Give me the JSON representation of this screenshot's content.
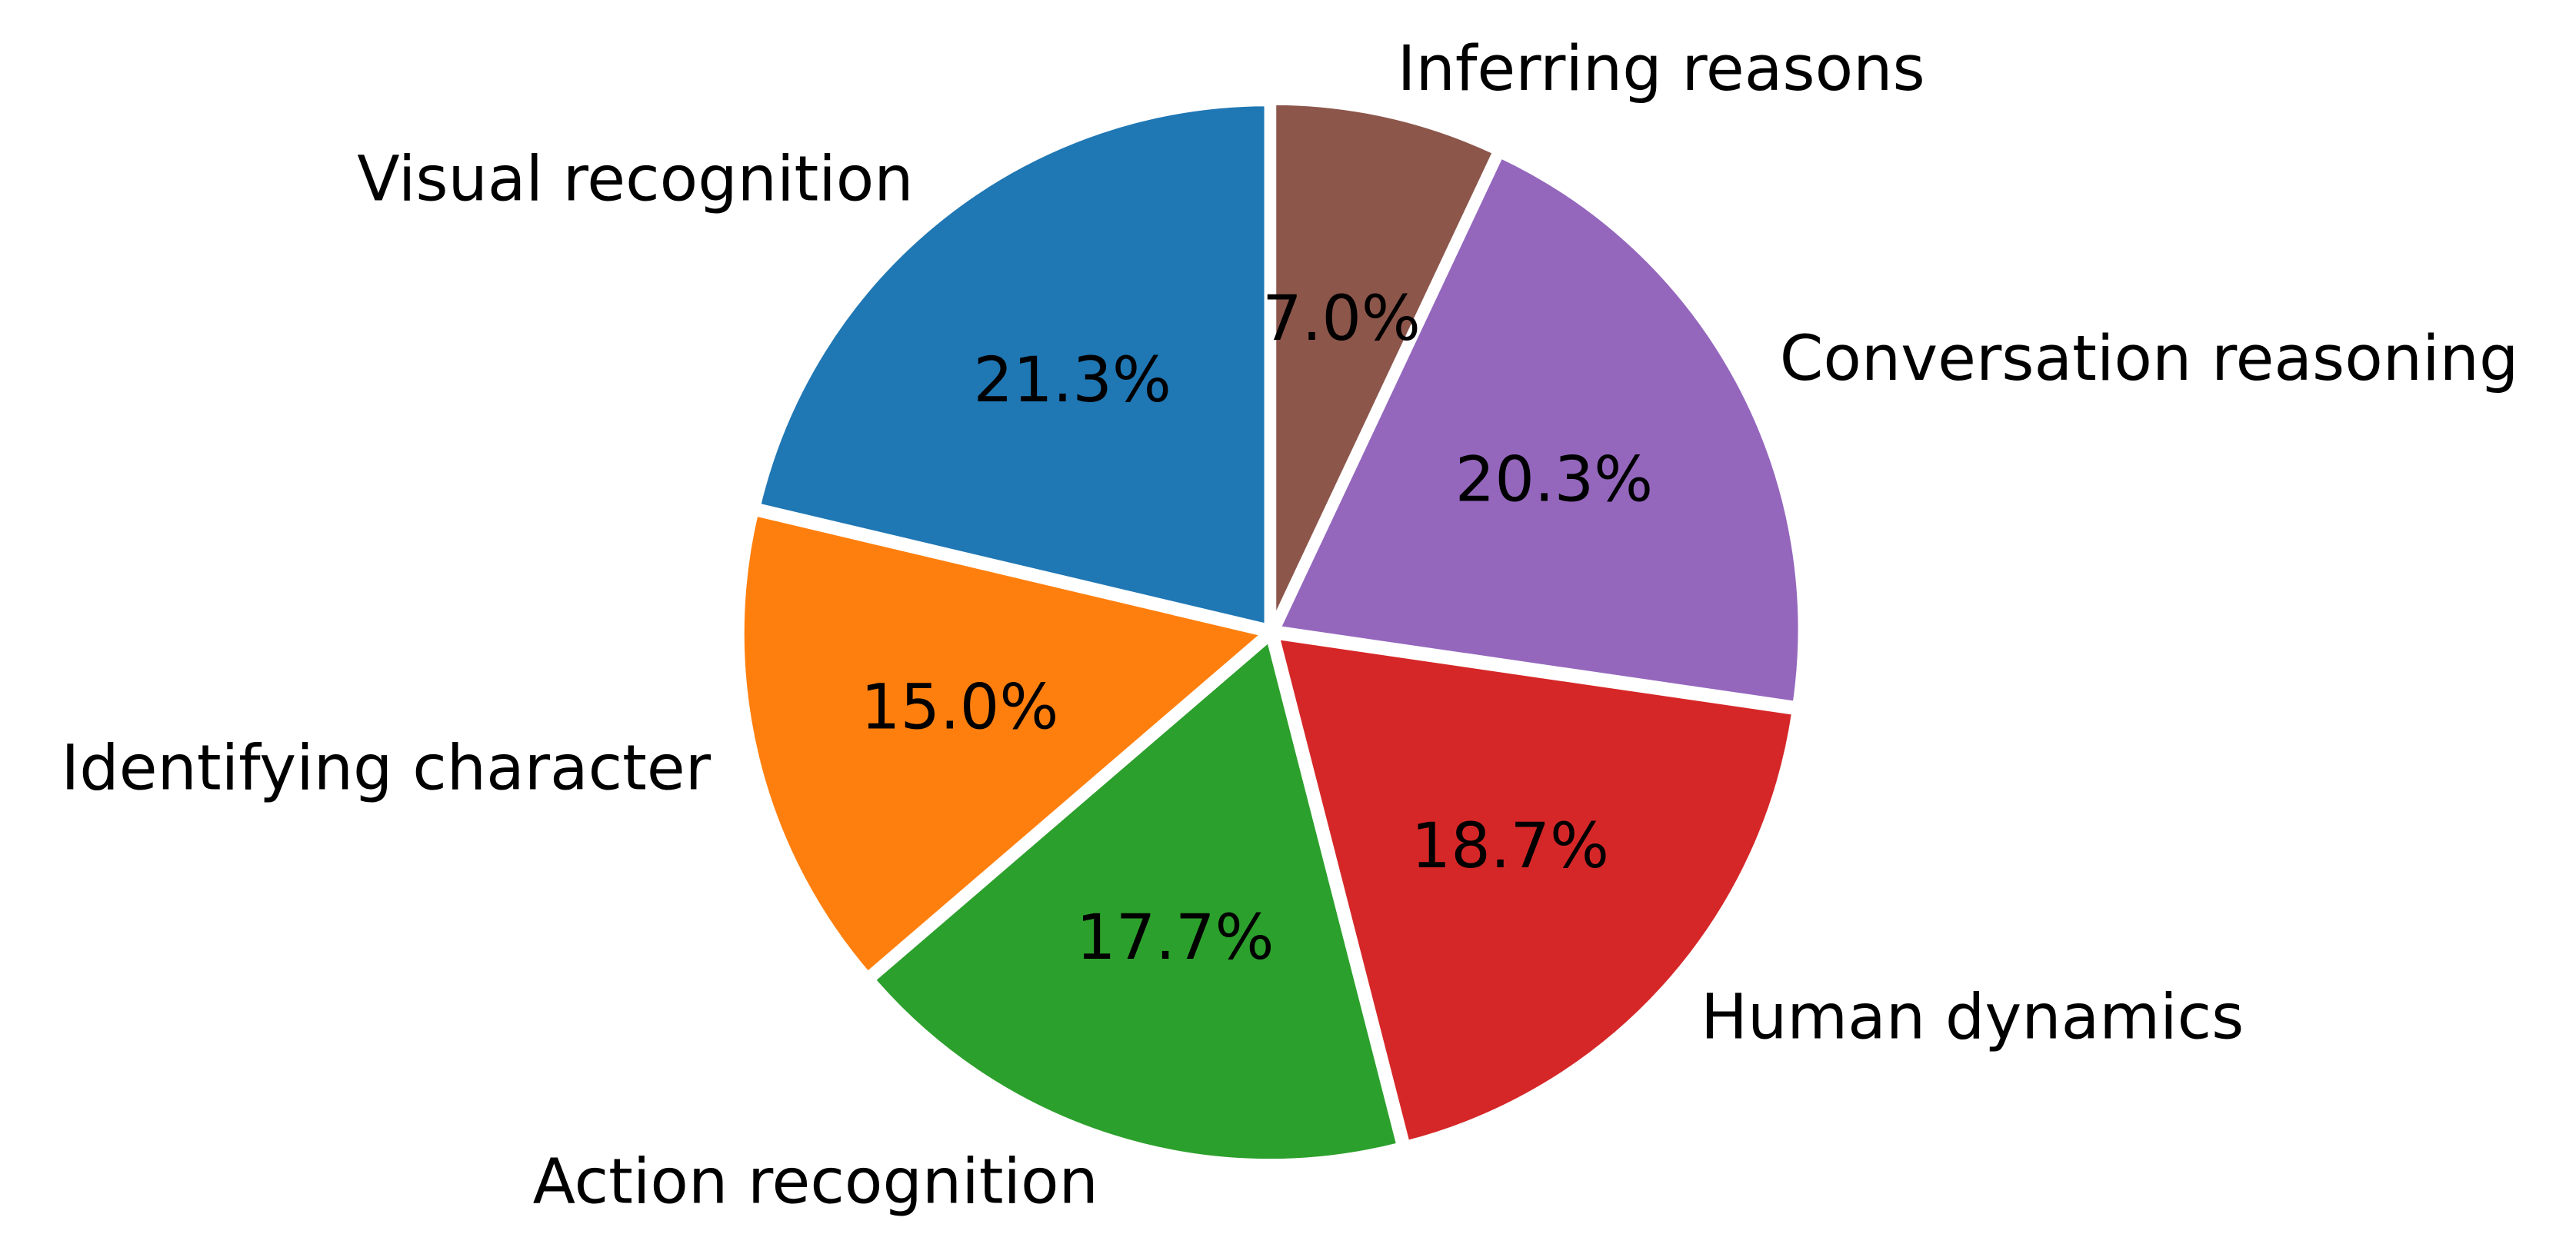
{
  "chart_data": {
    "type": "pie",
    "start_angle_deg": 90,
    "direction": "clockwise",
    "slices": [
      {
        "label": "Inferring reasons",
        "value": 7.0,
        "pct_text": "7.0%",
        "color": "#8c564b"
      },
      {
        "label": "Conversation reasoning",
        "value": 20.3,
        "pct_text": "20.3%",
        "color": "#9467bd"
      },
      {
        "label": "Human dynamics",
        "value": 18.7,
        "pct_text": "18.7%",
        "color": "#d62728"
      },
      {
        "label": "Action recognition",
        "value": 17.7,
        "pct_text": "17.7%",
        "color": "#2ca02c"
      },
      {
        "label": "Identifying character",
        "value": 15.0,
        "pct_text": "15.0%",
        "color": "#ff7f0e"
      },
      {
        "label": "Visual recognition",
        "value": 21.3,
        "pct_text": "21.3%",
        "color": "#1f77b4"
      }
    ],
    "wedge_edge_color": "#ffffff"
  }
}
